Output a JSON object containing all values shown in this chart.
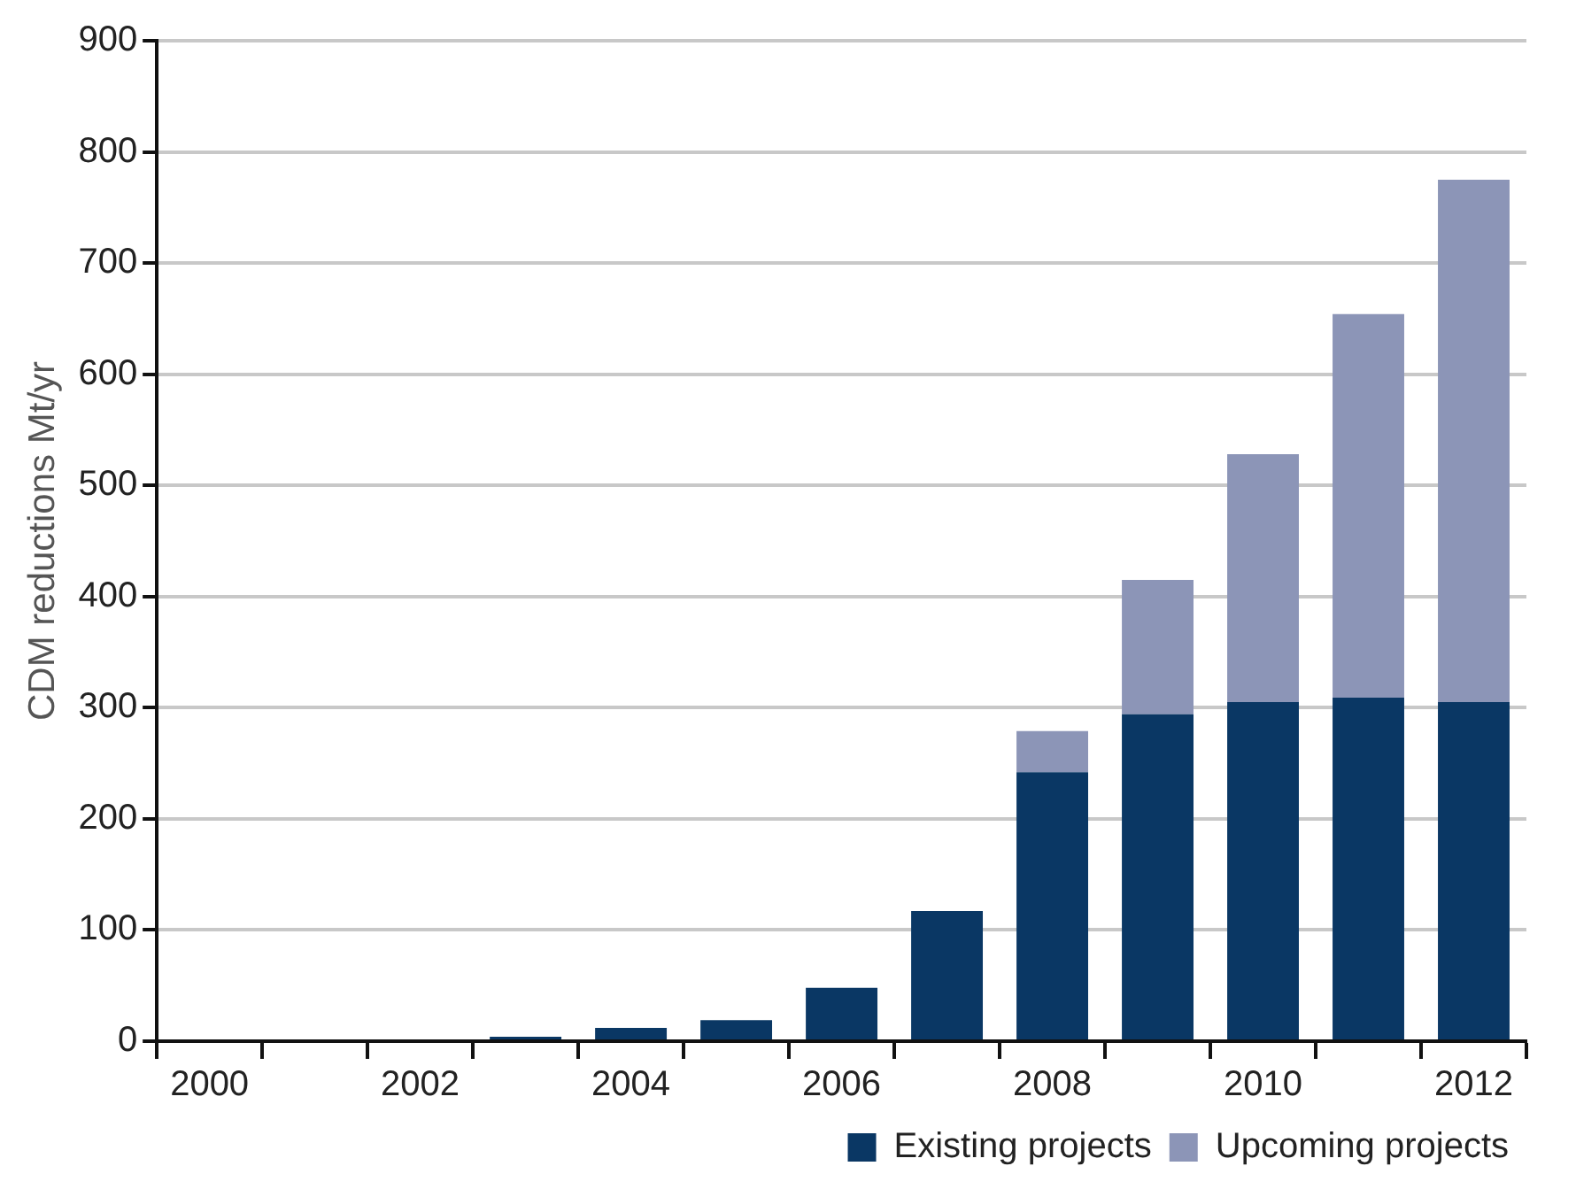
{
  "chart_data": {
    "type": "bar",
    "ylabel": "CDM reductions Mt/yr",
    "categories": [
      "2000",
      null,
      "2002",
      null,
      "2004",
      null,
      "2006",
      null,
      "2008",
      null,
      "2010",
      null,
      "2012"
    ],
    "stacked": true,
    "series": [
      {
        "name": "Existing projects",
        "color": "#0a3764",
        "values": [
          0,
          0,
          0,
          4,
          12,
          19,
          48,
          117,
          242,
          294,
          305,
          309,
          305
        ]
      },
      {
        "name": "Upcoming projects",
        "color": "#8c95b7",
        "values": [
          0,
          0,
          0,
          0,
          0,
          0,
          0,
          0,
          37,
          121,
          223,
          345,
          470
        ]
      }
    ],
    "ylim": [
      0,
      900
    ],
    "yticks": [
      0,
      100,
      200,
      300,
      400,
      500,
      600,
      700,
      800,
      900
    ],
    "grid": "y",
    "legend": "bottom right"
  }
}
